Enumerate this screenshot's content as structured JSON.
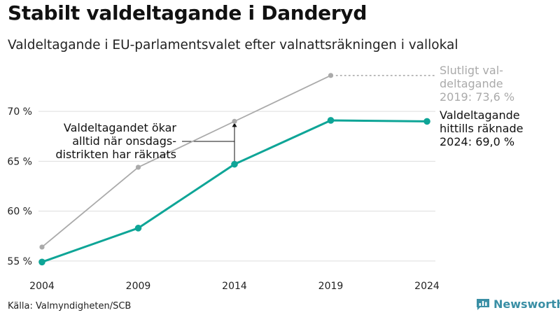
{
  "header": {
    "title": "Stabilt valdeltagande i Danderyd",
    "subtitle": "Valdeltagande i EU-parlamentsvalet efter valnattsräkningen i vallokal"
  },
  "footer": {
    "source": "Källa: Valmyndigheten/SCB",
    "brand": "Newsworthy",
    "brand_icon": "bar-chart-icon",
    "brand_color": "#3a8fa5"
  },
  "chart_data": {
    "type": "line",
    "x": [
      2004,
      2009,
      2014,
      2019,
      2024
    ],
    "xtick_labels": [
      "2004",
      "2009",
      "2014",
      "2019",
      "2024"
    ],
    "ylim": [
      54.5,
      74.5
    ],
    "yticks": [
      55,
      60,
      65,
      70
    ],
    "ytick_labels": [
      "55 %",
      "60 %",
      "65 %",
      "70 %"
    ],
    "grid": true,
    "series": [
      {
        "key": "final",
        "color": "#aaaaaa",
        "values": [
          56.4,
          64.4,
          69.0,
          73.6,
          null
        ]
      },
      {
        "key": "counted",
        "color": "#0ea597",
        "values": [
          54.9,
          58.3,
          64.7,
          69.1,
          69.0
        ]
      }
    ],
    "annotations": {
      "final_label": [
        "Slutligt val-",
        "deltagande",
        "2019: 73,6 %"
      ],
      "counted_label": [
        "Valdeltagande",
        "hittills räknade",
        "2024: 69,0 %"
      ],
      "note_label": [
        "Valdeltagandet ökar",
        "alltid när onsdags-",
        "distrikten har räknats"
      ]
    }
  }
}
